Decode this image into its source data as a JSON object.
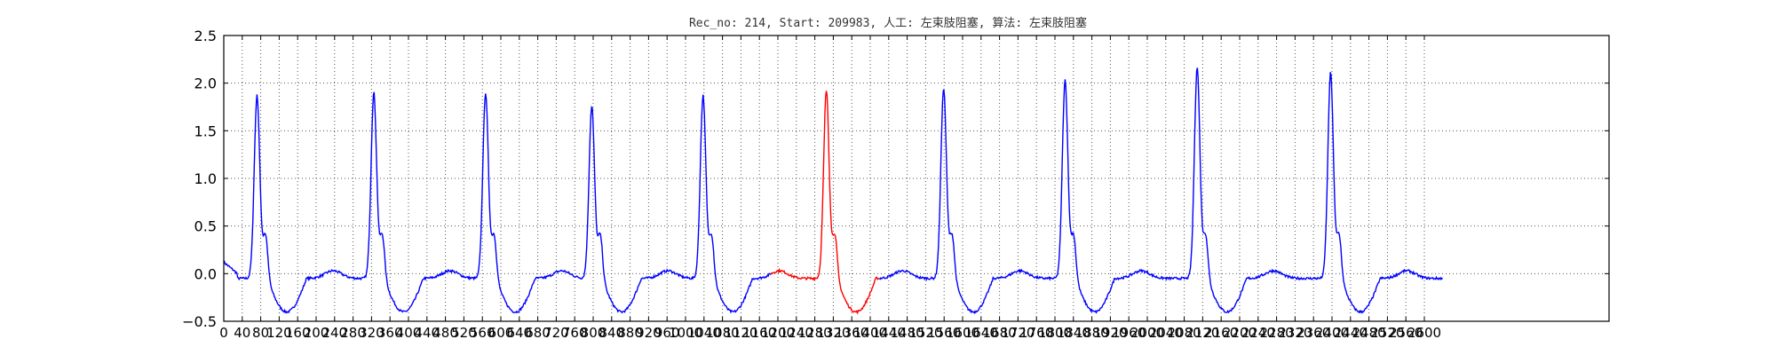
{
  "chart_data": {
    "type": "line",
    "title": "Rec_no: 214, Start: 209983, 人工: 左束肢阻塞, 算法: 左束肢阻塞",
    "xlabel": "",
    "ylabel": "",
    "xlim": [
      0,
      3000
    ],
    "ylim": [
      -0.5,
      2.5
    ],
    "grid": true,
    "yticks": [
      2.5,
      2.0,
      1.5,
      1.0,
      0.5,
      0.0,
      -0.5
    ],
    "ytick_labels": [
      "2.5",
      "2.0",
      "1.5",
      "1.0",
      "0.5",
      "0.0",
      "−0.5"
    ],
    "xticks": [
      0,
      40,
      80,
      120,
      160,
      200,
      240,
      280,
      320,
      360,
      400,
      440,
      480,
      520,
      560,
      600,
      640,
      680,
      720,
      760,
      800,
      840,
      880,
      920,
      960,
      1000,
      1040,
      1080,
      1120,
      1160,
      1200,
      1240,
      1280,
      1320,
      1360,
      1400,
      1440,
      1480,
      1520,
      1560,
      1600,
      1640,
      1680,
      1720,
      1760,
      1800,
      1840,
      1880,
      1920,
      1960,
      2000,
      2040,
      2080,
      2120,
      2160,
      2200,
      2240,
      2280,
      2320,
      2360,
      2400,
      2440,
      2480,
      2520,
      2560,
      2600
    ],
    "xtick_labels": [
      "0",
      "40",
      "80",
      "120",
      "160",
      "200",
      "240",
      "280",
      "320",
      "360",
      "400",
      "440",
      "480",
      "520",
      "560",
      "600",
      "640",
      "680",
      "720",
      "760",
      "800",
      "840",
      "880",
      "920",
      "960",
      "1000",
      "1040",
      "1080",
      "1120",
      "1160",
      "1200",
      "1240",
      "1280",
      "1320",
      "1360",
      "1400",
      "1440",
      "1480",
      "1520",
      "1560",
      "1600",
      "1640",
      "1680",
      "1720",
      "1760",
      "1800",
      "1840",
      "1880",
      "1920",
      "1960",
      "2000",
      "2040",
      "2080",
      "2120",
      "2160",
      "2200",
      "2240",
      "2280",
      "2320",
      "2360",
      "2400",
      "2440",
      "2480",
      "2520",
      "2560",
      "2600"
    ],
    "beats_r_peak": [
      {
        "x": 72,
        "peak": 1.87,
        "color": "#0000ff"
      },
      {
        "x": 325,
        "peak": 1.9,
        "color": "#0000ff"
      },
      {
        "x": 567,
        "peak": 1.9,
        "color": "#0000ff"
      },
      {
        "x": 797,
        "peak": 1.76,
        "color": "#0000ff"
      },
      {
        "x": 1038,
        "peak": 1.87,
        "color": "#0000ff"
      },
      {
        "x": 1305,
        "peak": 1.92,
        "color": "#ff0000"
      },
      {
        "x": 1559,
        "peak": 1.95,
        "color": "#0000ff"
      },
      {
        "x": 1822,
        "peak": 2.03,
        "color": "#0000ff"
      },
      {
        "x": 2108,
        "peak": 2.17,
        "color": "#0000ff"
      },
      {
        "x": 2397,
        "peak": 2.11,
        "color": "#0000ff"
      }
    ],
    "series": [
      {
        "color": "#0000ff",
        "x_range": [
          0,
          1185
        ]
      },
      {
        "color": "#ff0000",
        "x_range": [
          1185,
          1420
        ]
      },
      {
        "color": "#0000ff",
        "x_range": [
          1420,
          2640
        ]
      }
    ],
    "signal_end_x": 2640,
    "baseline": -0.05,
    "min_level": -0.42
  }
}
